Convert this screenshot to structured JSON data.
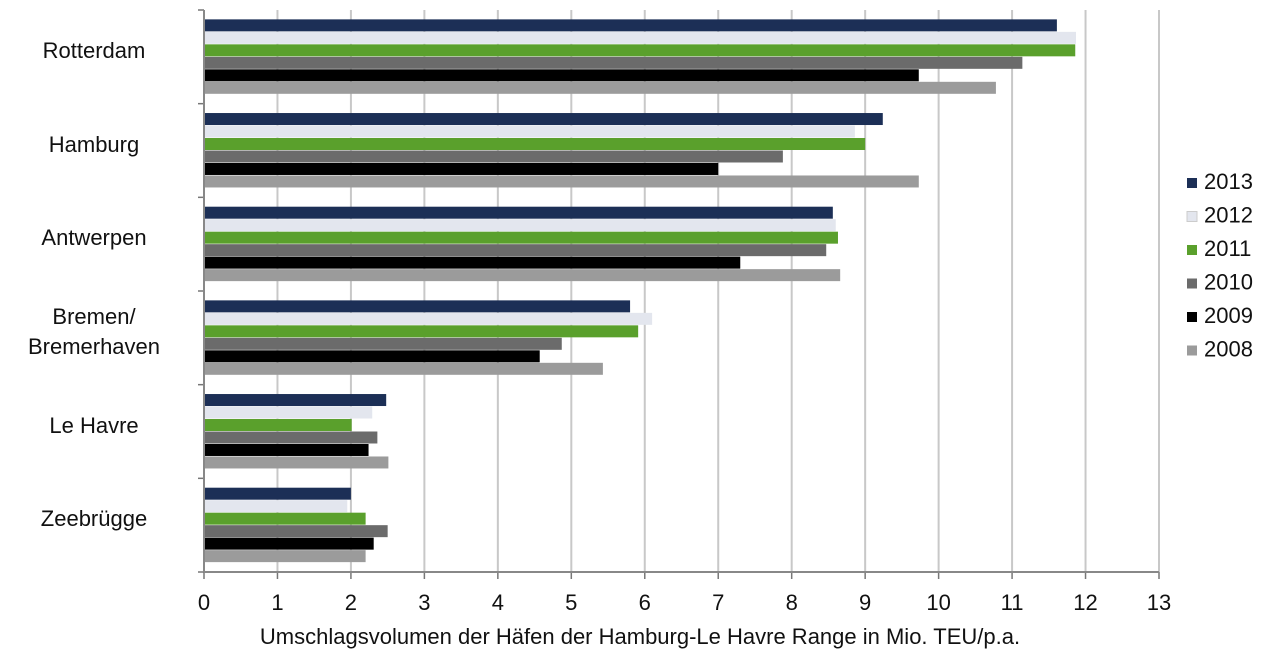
{
  "chart_data": {
    "type": "bar",
    "orientation": "horizontal",
    "xlabel": "Umschlagsvolumen der Häfen der  Hamburg-Le Havre Range in Mio. TEU/p.a.",
    "categories": [
      "Rotterdam",
      "Hamburg",
      "Antwerpen",
      "Bremen/\nBremerhaven",
      "Le Havre",
      "Zeebrügge"
    ],
    "series": [
      {
        "name": "2013",
        "color": "#1c2f56",
        "values": [
          11.61,
          9.24,
          8.56,
          5.8,
          2.48,
          2.0
        ]
      },
      {
        "name": "2012",
        "color": "#e3e6ee",
        "values": [
          11.87,
          8.86,
          8.6,
          6.1,
          2.29,
          1.95
        ]
      },
      {
        "name": "2011",
        "color": "#5aa02c",
        "values": [
          11.86,
          9.0,
          8.63,
          5.91,
          2.01,
          2.2
        ]
      },
      {
        "name": "2010",
        "color": "#6b6b6b",
        "values": [
          11.14,
          7.88,
          8.47,
          4.87,
          2.36,
          2.5
        ]
      },
      {
        "name": "2009",
        "color": "#000000",
        "values": [
          9.73,
          7.0,
          7.3,
          4.57,
          2.24,
          2.31
        ]
      },
      {
        "name": "2008",
        "color": "#9b9b9b",
        "values": [
          10.78,
          9.73,
          8.66,
          5.43,
          2.51,
          2.2
        ]
      }
    ],
    "xlim": [
      0,
      13
    ],
    "xticks": [
      0,
      1,
      2,
      3,
      4,
      5,
      6,
      7,
      8,
      9,
      10,
      11,
      12,
      13
    ],
    "grid": true,
    "legend": "right"
  }
}
